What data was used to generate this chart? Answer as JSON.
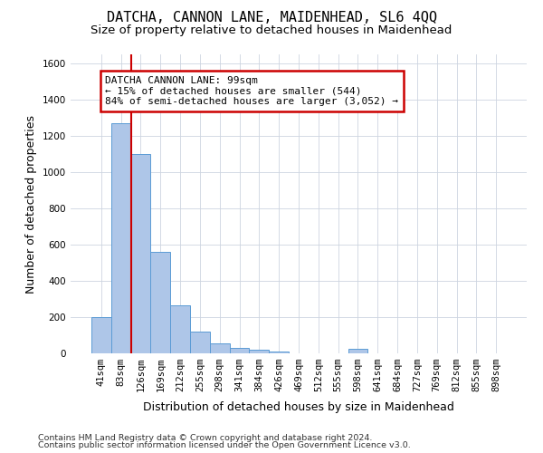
{
  "title": "DATCHA, CANNON LANE, MAIDENHEAD, SL6 4QQ",
  "subtitle": "Size of property relative to detached houses in Maidenhead",
  "xlabel": "Distribution of detached houses by size in Maidenhead",
  "ylabel": "Number of detached properties",
  "categories": [
    "41sqm",
    "83sqm",
    "126sqm",
    "169sqm",
    "212sqm",
    "255sqm",
    "298sqm",
    "341sqm",
    "384sqm",
    "426sqm",
    "469sqm",
    "512sqm",
    "555sqm",
    "598sqm",
    "641sqm",
    "684sqm",
    "727sqm",
    "769sqm",
    "812sqm",
    "855sqm",
    "898sqm"
  ],
  "values": [
    200,
    1270,
    1100,
    560,
    265,
    120,
    55,
    30,
    20,
    10,
    0,
    0,
    0,
    25,
    0,
    0,
    0,
    0,
    0,
    0,
    0
  ],
  "bar_color": "#aec6e8",
  "bar_edge_color": "#5b9bd5",
  "vline_x": 1.5,
  "vline_color": "#cc0000",
  "ylim": [
    0,
    1650
  ],
  "yticks": [
    0,
    200,
    400,
    600,
    800,
    1000,
    1200,
    1400,
    1600
  ],
  "annotation_text": "DATCHA CANNON LANE: 99sqm\n← 15% of detached houses are smaller (544)\n84% of semi-detached houses are larger (3,052) →",
  "annotation_box_facecolor": "#ffffff",
  "annotation_box_edgecolor": "#cc0000",
  "footnote1": "Contains HM Land Registry data © Crown copyright and database right 2024.",
  "footnote2": "Contains public sector information licensed under the Open Government Licence v3.0.",
  "background_color": "#ffffff",
  "grid_color": "#cdd5e0",
  "title_fontsize": 11,
  "subtitle_fontsize": 9.5,
  "tick_fontsize": 7.5,
  "ylabel_fontsize": 9,
  "xlabel_fontsize": 9,
  "footnote_fontsize": 6.8
}
